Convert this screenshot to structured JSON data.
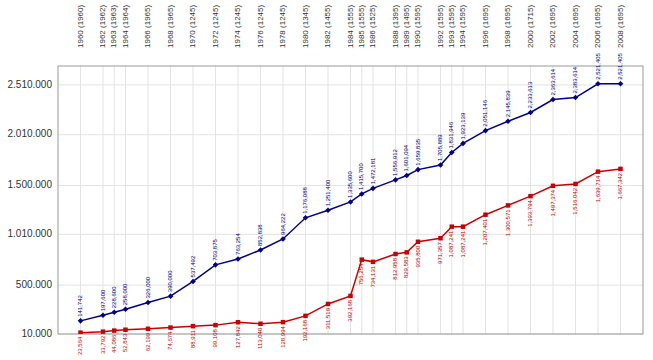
{
  "chart_data": {
    "type": "line",
    "x": [
      1960,
      1962,
      1963,
      1964,
      1966,
      1968,
      1970,
      1972,
      1974,
      1976,
      1978,
      1980,
      1982,
      1984,
      1985,
      1986,
      1988,
      1989,
      1990,
      1992,
      1993,
      1994,
      1996,
      1998,
      2000,
      2002,
      2004,
      2006,
      2008
    ],
    "series": [
      {
        "color": "#00008B",
        "marker": "diamond",
        "values": [
          141742,
          197600,
          228600,
          258000,
          326000,
          390000,
          537492,
          703875,
          763254,
          852838,
          964222,
          1176088,
          1251400,
          1335600,
          1415700,
          1472181,
          1556912,
          1601094,
          1659835,
          1705889,
          1831946,
          1923139,
          2051146,
          2145839,
          2233613,
          2363614,
          2383614,
          2521405,
          2521405
        ],
        "value_labels": [
          "141,742",
          "197,600",
          "228,600",
          "258,000",
          "326,000",
          "390,000",
          "537,492",
          "703,875",
          "763,254",
          "852,838",
          "964,222",
          "1,176,088",
          "1,251,400",
          "1,335,600",
          "1,415,700",
          "1,472,181",
          "1,556,912",
          "1,601,094",
          "1,659,835",
          "1,705,889",
          "1,831,946",
          "1,923,139",
          "2,051,146",
          "2,145,839",
          "2,233,613",
          "2,363,614",
          "2,383,614",
          "2,521,405",
          "2,521,405"
        ]
      },
      {
        "color": "#CC0000",
        "marker": "square",
        "values": [
          23564,
          33792,
          44086,
          52843,
          62199,
          74674,
          88911,
          99108,
          127842,
          113040,
          128994,
          192168,
          311519,
          392168,
          756254,
          734131,
          812958,
          829583,
          935800,
          971357,
          1087241,
          1087241,
          1207401,
          1300571,
          1393794,
          1497374,
          1516042,
          1639714,
          1667342
        ],
        "value_labels": [
          "23,564",
          "33,792",
          "44,086",
          "52,843",
          "62,199",
          "74,674",
          "88,911",
          "99,108",
          "127,842",
          "113,040",
          "128,994",
          "192,168",
          "311,519",
          "392,168",
          "756,254",
          "734,131",
          "812,958",
          "829,583",
          "935,800",
          "971,357",
          "1,087,241",
          "1,087,241",
          "1,207,401",
          "1,300,571",
          "1,393,794",
          "1,497,374",
          "1,516,042",
          "1,639,714",
          "1,667,342"
        ]
      }
    ],
    "xlim": [
      1958,
      2010
    ],
    "xticks": [
      {
        "value": 1960,
        "label": "1960 (1960)"
      },
      {
        "value": 1962,
        "label": "1962 (1962)"
      },
      {
        "value": 1963,
        "label": "1963 (1963)"
      },
      {
        "value": 1964,
        "label": "1964 (1964)"
      },
      {
        "value": 1966,
        "label": "1966 (1965)"
      },
      {
        "value": 1968,
        "label": "1968 (1965)"
      },
      {
        "value": 1970,
        "label": "1970 (1245)"
      },
      {
        "value": 1972,
        "label": "1972 (1245)"
      },
      {
        "value": 1974,
        "label": "1974 (1245)"
      },
      {
        "value": 1976,
        "label": "1976 (1245)"
      },
      {
        "value": 1978,
        "label": "1978 (1245)"
      },
      {
        "value": 1980,
        "label": "1980 (1345)"
      },
      {
        "value": 1982,
        "label": "1982 (1455)"
      },
      {
        "value": 1984,
        "label": "1984 (1555)"
      },
      {
        "value": 1985,
        "label": "1985 (1555)"
      },
      {
        "value": 1986,
        "label": "1986 (1525)"
      },
      {
        "value": 1988,
        "label": "1988 (1395)"
      },
      {
        "value": 1989,
        "label": "1989 (1495)"
      },
      {
        "value": 1990,
        "label": "1990 (1595)"
      },
      {
        "value": 1992,
        "label": "1992 (1595)"
      },
      {
        "value": 1993,
        "label": "1993 (1595)"
      },
      {
        "value": 1994,
        "label": "1994 (1595)"
      },
      {
        "value": 1996,
        "label": "1996 (1695)"
      },
      {
        "value": 1998,
        "label": "1998 (1695)"
      },
      {
        "value": 2000,
        "label": "2000 (1715)"
      },
      {
        "value": 2002,
        "label": "2002 (1695)"
      },
      {
        "value": 2004,
        "label": "2004 (1695)"
      },
      {
        "value": 2006,
        "label": "2006 (1695)"
      },
      {
        "value": 2008,
        "label": "2008 (1695)"
      }
    ],
    "ylim": [
      10000,
      2700000
    ],
    "yticks": [
      {
        "value": 10000,
        "label": "10.000"
      },
      {
        "value": 500000,
        "label": "500.000"
      },
      {
        "value": 1010000,
        "label": "1.010.000"
      },
      {
        "value": 1500000,
        "label": "1.500.000"
      },
      {
        "value": 2010000,
        "label": "2.010.000"
      },
      {
        "value": 2510000,
        "label": "2.510.000"
      }
    ],
    "grid": true,
    "data_labels": true
  }
}
